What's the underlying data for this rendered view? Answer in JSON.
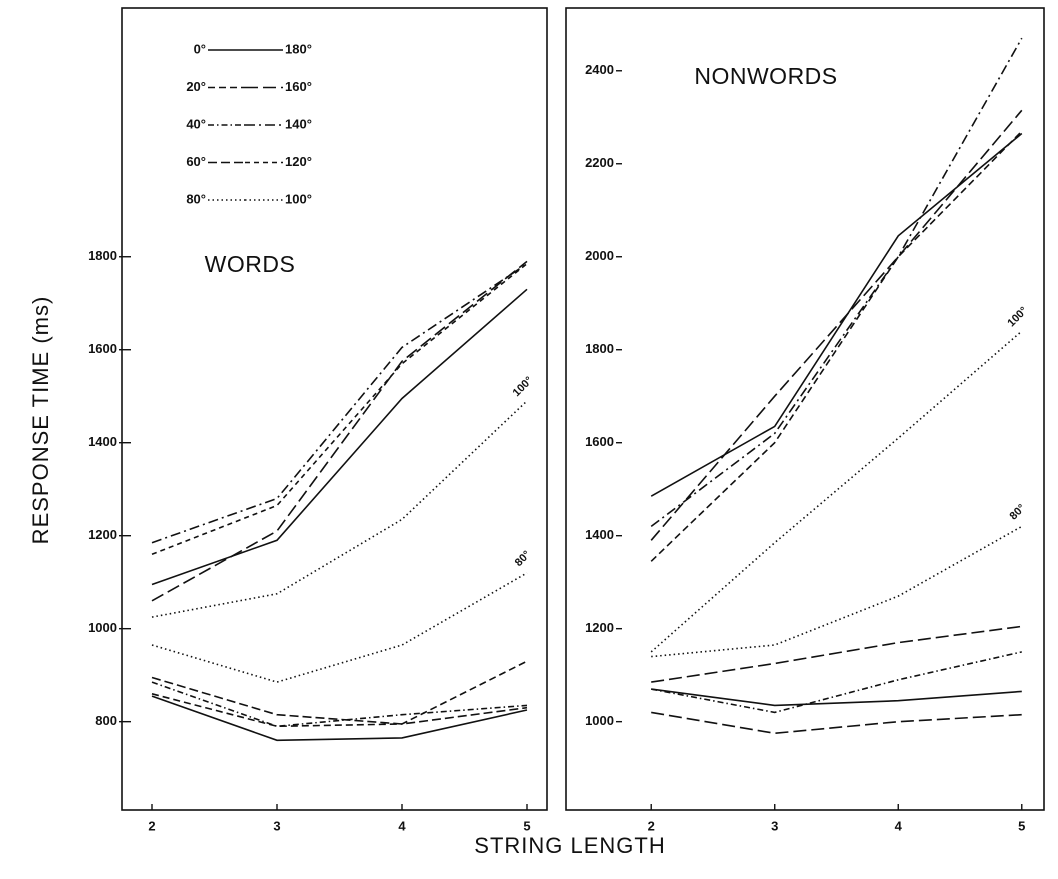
{
  "xlabel": "STRING LENGTH",
  "ylabel": "RESPONSE TIME (ms)",
  "chart_data": [
    {
      "type": "line",
      "title": "WORDS",
      "legend": true,
      "x": [
        2,
        3,
        4,
        5
      ],
      "xlim": [
        1.76,
        5.16
      ],
      "xticks": [
        2,
        3,
        4,
        5
      ],
      "ylim": [
        610,
        2335
      ],
      "yticks": [
        800,
        1000,
        1200,
        1400,
        1600,
        1800
      ],
      "series": [
        {
          "name": "0°",
          "color": "#111",
          "dash": "none",
          "values": [
            855,
            760,
            765,
            825
          ]
        },
        {
          "name": "180°",
          "color": "#111",
          "dash": "none",
          "values": [
            1095,
            1190,
            1495,
            1730
          ]
        },
        {
          "name": "20°",
          "color": "#111",
          "dash": "7,4",
          "values": [
            860,
            790,
            795,
            930
          ]
        },
        {
          "name": "160°",
          "color": "#111",
          "dash": "13,5",
          "values": [
            1060,
            1210,
            1575,
            1790
          ]
        },
        {
          "name": "40°",
          "color": "#111",
          "dash": "6,3,1.5,3",
          "values": [
            885,
            790,
            815,
            835
          ]
        },
        {
          "name": "140°",
          "color": "#111",
          "dash": "10,4,2,4",
          "values": [
            1185,
            1280,
            1605,
            1785
          ]
        },
        {
          "name": "60°",
          "color": "#111",
          "dash": "9,4",
          "values": [
            895,
            815,
            795,
            830
          ]
        },
        {
          "name": "120°",
          "color": "#111",
          "dash": "5,4",
          "values": [
            1160,
            1265,
            1570,
            1785
          ]
        },
        {
          "name": "80°",
          "color": "#111",
          "dash": "1.5,3",
          "label_at_end": true,
          "values": [
            965,
            885,
            965,
            1120
          ]
        },
        {
          "name": "100°",
          "color": "#111",
          "dash": "1.5,3",
          "label_at_end": true,
          "values": [
            1025,
            1075,
            1235,
            1490
          ]
        }
      ]
    },
    {
      "type": "line",
      "title": "NONWORDS",
      "legend": false,
      "x": [
        2,
        3,
        4,
        5
      ],
      "xlim": [
        1.31,
        5.18
      ],
      "xticks": [
        2,
        3,
        4,
        5
      ],
      "ylim": [
        810,
        2535
      ],
      "yticks": [
        1000,
        1200,
        1400,
        1600,
        1800,
        2000,
        2200,
        2400
      ],
      "series": [
        {
          "color": "#111",
          "dash": "none",
          "values": [
            1070,
            1035,
            1045,
            1065
          ]
        },
        {
          "color": "#111",
          "dash": "none",
          "values": [
            1485,
            1635,
            2045,
            2265
          ]
        },
        {
          "color": "#111",
          "dash": "13,5",
          "values": [
            1020,
            975,
            1000,
            1015
          ]
        },
        {
          "color": "#111",
          "dash": "13,5",
          "values": [
            1390,
            1700,
            2000,
            2315
          ]
        },
        {
          "color": "#111",
          "dash": "6,3,1.5,3",
          "values": [
            1070,
            1020,
            1090,
            1150
          ]
        },
        {
          "color": "#111",
          "dash": "10,4,2,4",
          "values": [
            1420,
            1620,
            2000,
            2470
          ]
        },
        {
          "color": "#111",
          "dash": "13,5",
          "values": [
            1085,
            1125,
            1170,
            1205
          ]
        },
        {
          "color": "#111",
          "dash": "7,4",
          "values": [
            1345,
            1600,
            2000,
            2270
          ]
        },
        {
          "name": "80°",
          "color": "#111",
          "dash": "1.5,3",
          "label_at_end": true,
          "values": [
            1140,
            1165,
            1270,
            1420
          ]
        },
        {
          "name": "100°",
          "color": "#111",
          "dash": "1.5,3",
          "label_at_end": true,
          "values": [
            1150,
            1385,
            1610,
            1840
          ]
        }
      ]
    }
  ]
}
